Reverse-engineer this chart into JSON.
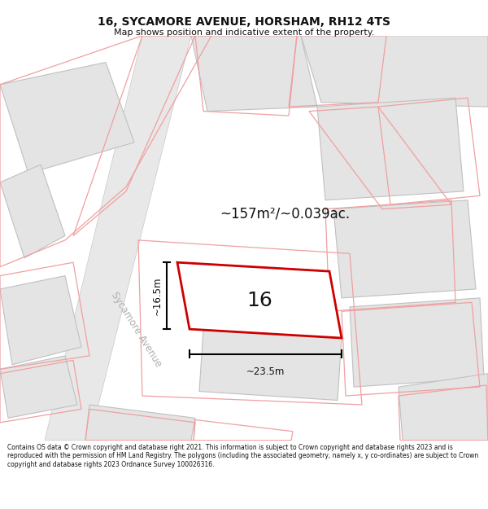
{
  "title": "16, SYCAMORE AVENUE, HORSHAM, RH12 4TS",
  "subtitle": "Map shows position and indicative extent of the property.",
  "footer": "Contains OS data © Crown copyright and database right 2021. This information is subject to Crown copyright and database rights 2023 and is reproduced with the permission of HM Land Registry. The polygons (including the associated geometry, namely x, y co-ordinates) are subject to Crown copyright and database rights 2023 Ordnance Survey 100026316.",
  "area_label": "~157m²/~0.039ac.",
  "width_label": "~23.5m",
  "height_label": "~16.5m",
  "number_label": "16",
  "road_label": "Sycamore Avenue",
  "map_bg": "#ffffff",
  "road_fill": "#e8e8e8",
  "road_edge": "#c8c8c8",
  "building_fill": "#e4e4e4",
  "building_edge": "#c0c0c0",
  "plot_edge": "#f0a0a0",
  "property_color": "#cc0000",
  "property_fill": "#ffffff",
  "annotation_color": "#111111",
  "road_label_color": "#b0b0b0",
  "title_fontsize": 10,
  "subtitle_fontsize": 8,
  "footer_fontsize": 5.5
}
